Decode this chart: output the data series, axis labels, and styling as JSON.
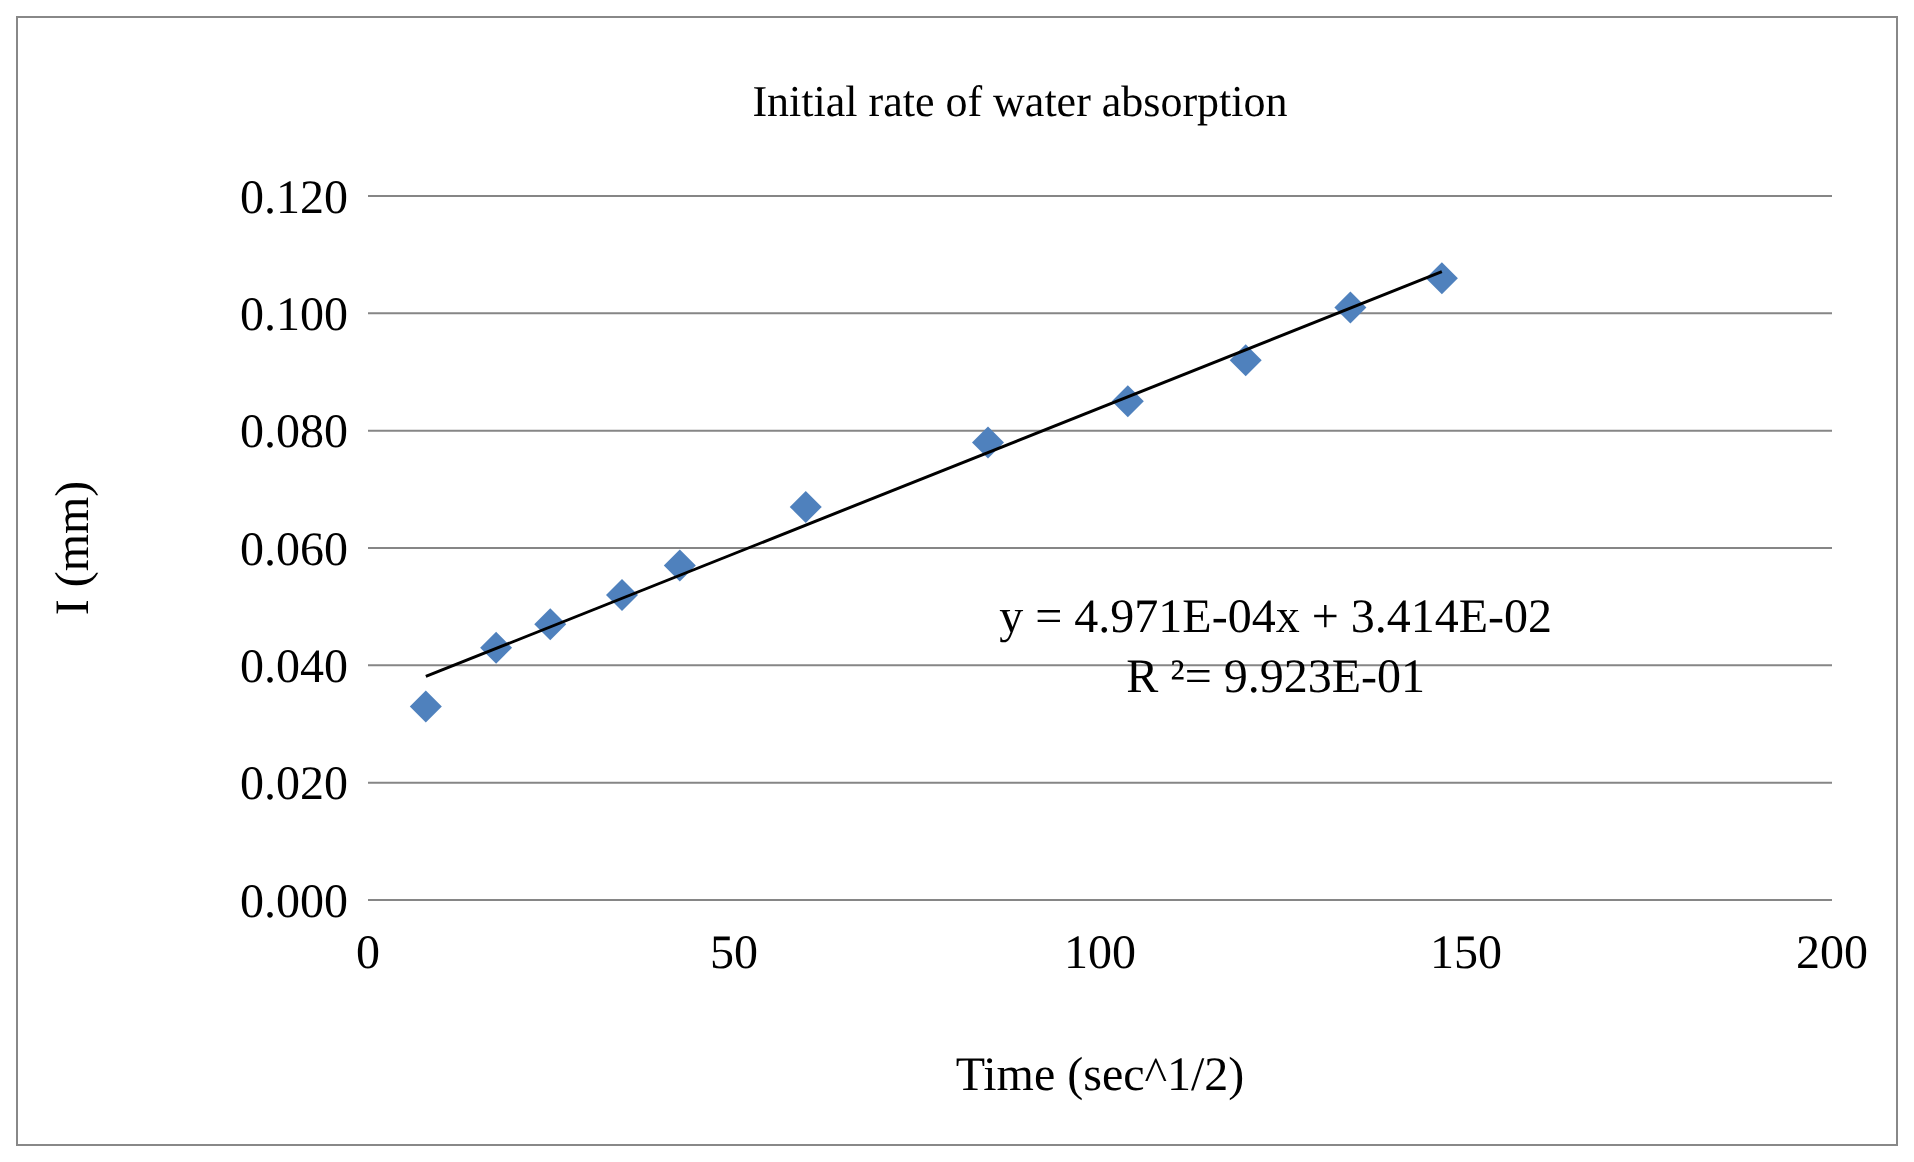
{
  "chart_data": {
    "type": "scatter",
    "title": "Initial rate of water absorption",
    "xlabel": "Time (sec^1/2)",
    "ylabel": "I (mm)",
    "xlim": [
      0,
      200
    ],
    "xticks": [
      0,
      50,
      100,
      150,
      200
    ],
    "ylim": [
      0,
      0.12
    ],
    "yticks": [
      {
        "value": 0,
        "label": "0.000"
      },
      {
        "value": 0.02,
        "label": "0.020"
      },
      {
        "value": 0.04,
        "label": "0.040"
      },
      {
        "value": 0.06,
        "label": "0.060"
      },
      {
        "value": 0.08,
        "label": "0.080"
      },
      {
        "value": 0.1,
        "label": "0.100"
      },
      {
        "value": 0.12,
        "label": "0.120"
      }
    ],
    "grid": "y",
    "marker": "diamond",
    "series": [
      {
        "color": "#4f81bd",
        "x": [
          7.9,
          17.5,
          24.9,
          34.7,
          42.6,
          59.8,
          84.7,
          103.8,
          119.9,
          134.2,
          146.7
        ],
        "values": [
          0.033,
          0.043,
          0.047,
          0.052,
          0.057,
          0.067,
          0.078,
          0.085,
          0.092,
          0.101,
          0.106
        ]
      },
      {
        "type": "line",
        "color": "#000000",
        "marker": "none",
        "x": [
          7.9,
          146.7
        ],
        "values": [
          0.0381,
          0.1071
        ]
      }
    ],
    "annotations": [
      "y = 4.971E-04x + 3.414E-02",
      "R ²= 9.923E-01"
    ]
  }
}
